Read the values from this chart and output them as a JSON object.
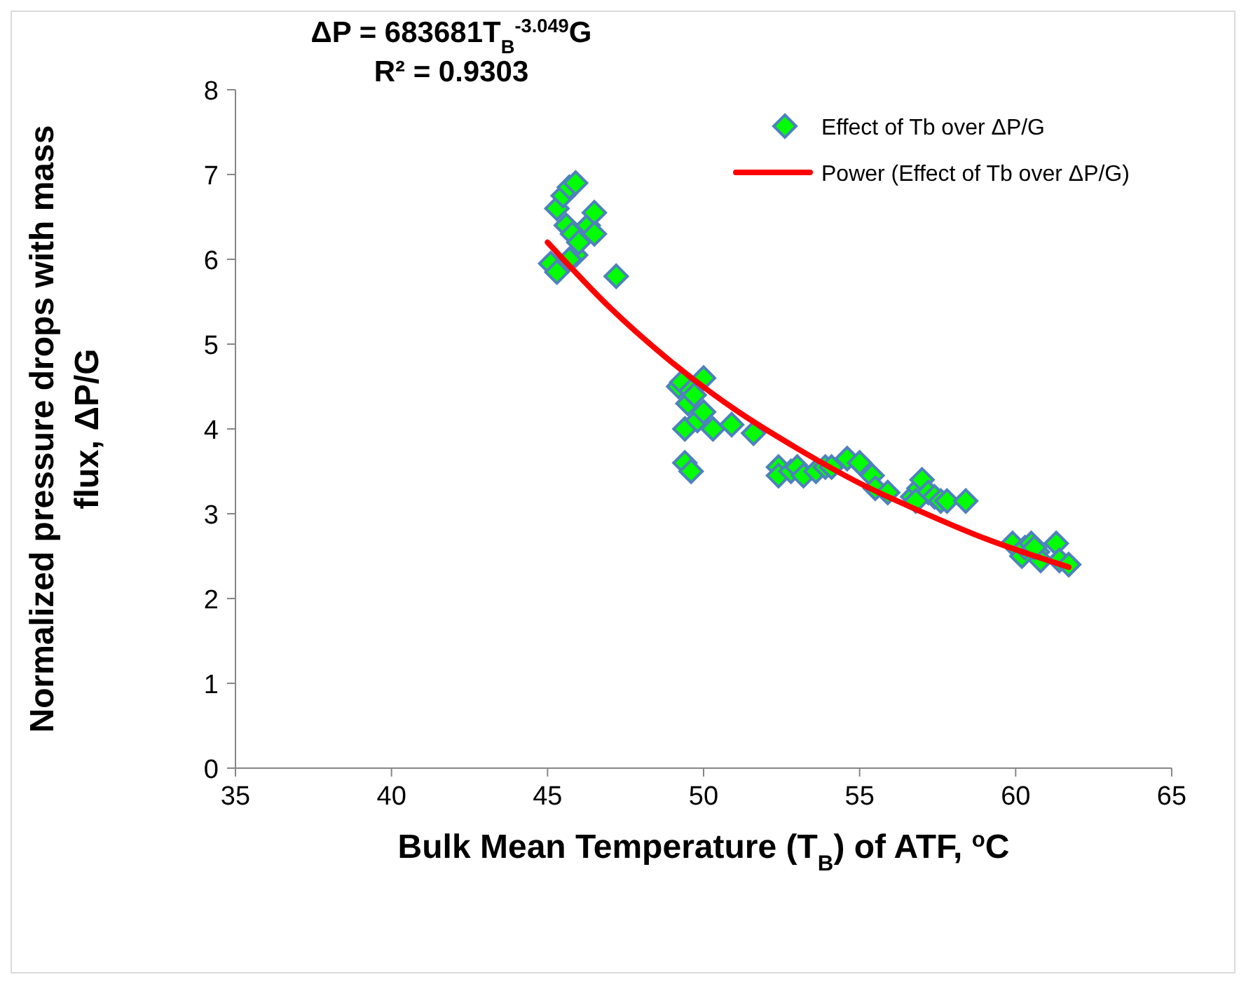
{
  "chart_data": {
    "type": "scatter",
    "xlabel": "Bulk Mean Temperature (T$_{B}$) of ATF, $^{o}$C",
    "ylabel": "Normalized pressure drops with mass flux, ΔP/G",
    "annotations": [
      "ΔP = 683681T$_{B}$$^{-3.049}$G",
      "R² = 0.9303"
    ],
    "xlim": [
      35,
      65
    ],
    "xticks": [
      35,
      40,
      45,
      50,
      55,
      60,
      65
    ],
    "ylim": [
      0,
      8
    ],
    "yticks": [
      0,
      1,
      2,
      3,
      4,
      5,
      6,
      7,
      8
    ],
    "grid": false,
    "legend": "top right",
    "series": [
      {
        "name": "Effect of Tb over  ΔP/G",
        "marker": "diamond",
        "color": "#00ff00",
        "x": [
          45.1,
          45.3,
          45.3,
          45.5,
          45.6,
          45.7,
          45.8,
          45.9,
          45.9,
          46.0,
          46.3,
          46.5,
          46.5,
          45.7,
          47.2,
          49.2,
          49.3,
          49.4,
          49.4,
          49.6,
          49.5,
          49.6,
          49.8,
          50.0,
          50.0,
          50.3,
          50.9,
          51.6,
          49.7,
          52.4,
          52.4,
          52.8,
          53.0,
          53.2,
          53.6,
          53.9,
          54.1,
          54.6,
          55.0,
          55.4,
          55.5,
          55.9,
          56.7,
          56.9,
          57.0,
          57.2,
          57.4,
          57.6,
          57.8,
          58.4,
          56.8,
          59.9,
          60.2,
          60.3,
          60.5,
          60.7,
          60.8,
          61.3,
          61.4,
          61.7,
          60.6
        ],
        "values": [
          5.95,
          5.85,
          6.6,
          6.75,
          6.4,
          6.85,
          6.3,
          6.05,
          6.9,
          6.2,
          6.4,
          6.55,
          6.3,
          6.0,
          5.8,
          4.5,
          4.55,
          4.0,
          3.6,
          3.5,
          4.3,
          4.45,
          4.1,
          4.6,
          4.2,
          4.0,
          4.05,
          3.95,
          4.4,
          3.55,
          3.45,
          3.5,
          3.55,
          3.45,
          3.5,
          3.55,
          3.55,
          3.65,
          3.6,
          3.45,
          3.3,
          3.25,
          3.2,
          3.3,
          3.4,
          3.25,
          3.2,
          3.15,
          3.15,
          3.15,
          3.15,
          2.65,
          2.5,
          2.6,
          2.65,
          2.55,
          2.45,
          2.65,
          2.45,
          2.4,
          2.6
        ]
      },
      {
        "name": "Power (Effect of Tb over  ΔP/G)",
        "type": "line",
        "marker": "none",
        "color": "#ff0000",
        "x": [
          45,
          47,
          49,
          51,
          53,
          55,
          57,
          59,
          61.7
        ],
        "values": [
          6.2,
          5.43,
          4.78,
          4.23,
          3.77,
          3.36,
          3.02,
          2.71,
          2.37
        ]
      }
    ]
  }
}
